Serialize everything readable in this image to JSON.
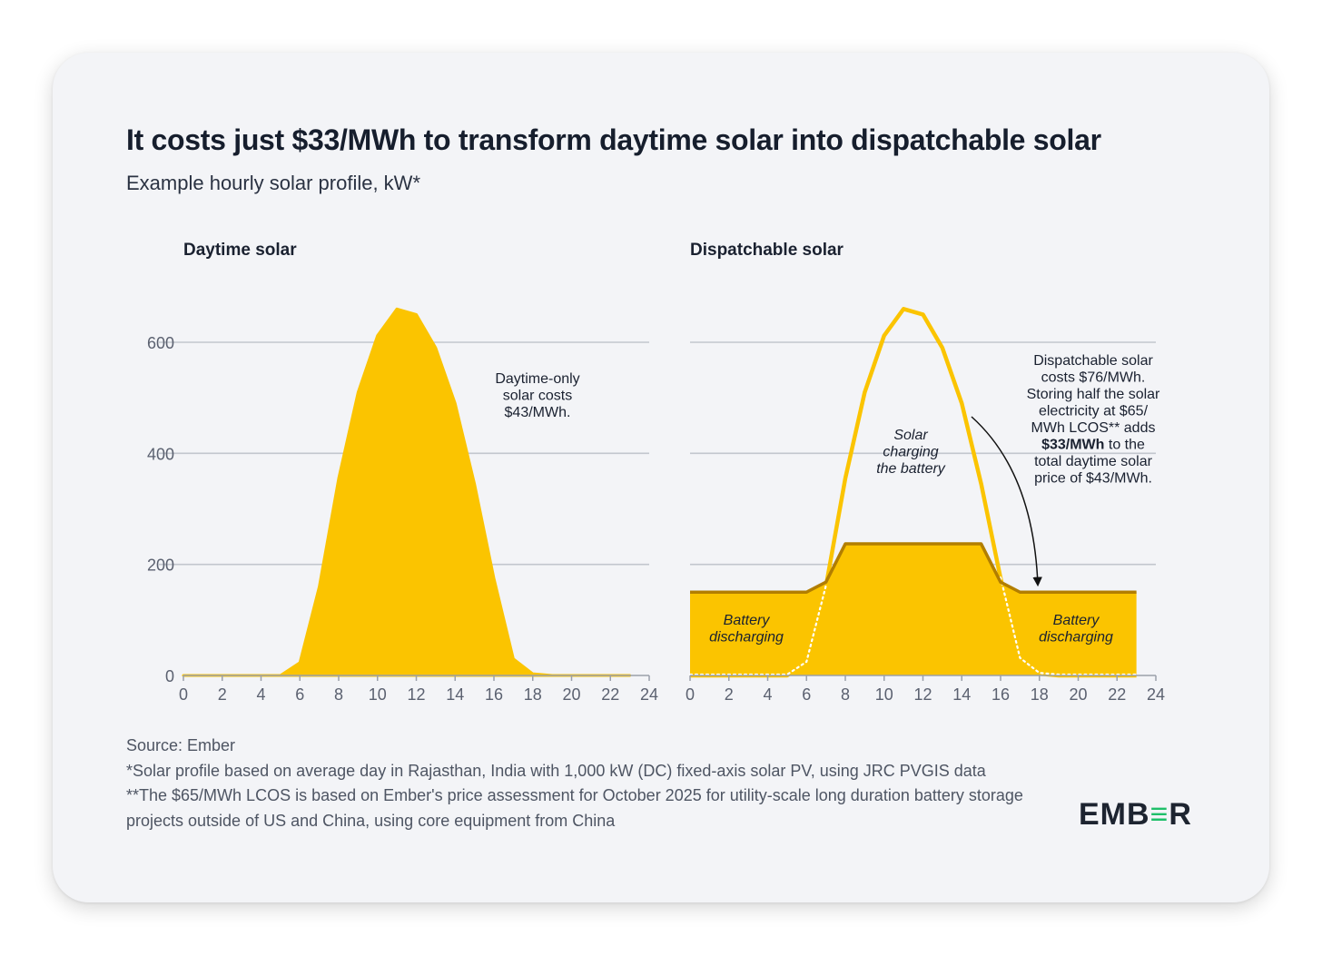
{
  "title": "It costs just $33/MWh to transform daytime solar into dispatchable solar",
  "subtitle": "Example hourly solar profile, kW*",
  "colors": {
    "solar": "#FBC400",
    "solar_line": "#FBC400",
    "battery_line": "#B27E00",
    "grid": "#C2C6CE",
    "axis": "#9BA0AA",
    "text": "#1a2130",
    "tick_text": "#5b6170",
    "background": "#F3F4F7"
  },
  "chart_data": [
    {
      "type": "area",
      "panel_title": "Daytime solar",
      "x": [
        0,
        1,
        2,
        3,
        4,
        5,
        6,
        7,
        8,
        9,
        10,
        11,
        12,
        13,
        14,
        15,
        16,
        17,
        18,
        19,
        20,
        21,
        22,
        23
      ],
      "y": [
        0,
        0,
        0,
        0,
        0,
        0,
        23,
        160,
        355,
        510,
        612,
        660,
        650,
        590,
        490,
        345,
        175,
        30,
        3,
        0,
        0,
        0,
        0,
        0
      ],
      "xlim": [
        0,
        24
      ],
      "ylim": [
        0,
        700
      ],
      "xticks": [
        "0",
        "2",
        "4",
        "6",
        "8",
        "10",
        "12",
        "14",
        "16",
        "18",
        "20",
        "22",
        "24"
      ],
      "yticks": [
        "0",
        "200",
        "400",
        "600"
      ],
      "annotation": [
        "Daytime-only",
        "solar costs",
        "$43/MWh."
      ]
    },
    {
      "type": "area",
      "panel_title": "Dispatchable solar",
      "x": [
        0,
        1,
        2,
        3,
        4,
        5,
        6,
        7,
        8,
        9,
        10,
        11,
        12,
        13,
        14,
        15,
        16,
        17,
        18,
        19,
        20,
        21,
        22,
        23
      ],
      "series": [
        {
          "name": "Dispatchable output",
          "values": [
            150,
            150,
            150,
            150,
            150,
            150,
            150,
            168,
            237,
            237,
            237,
            237,
            237,
            237,
            237,
            237,
            168,
            150,
            150,
            150,
            150,
            150,
            150,
            150
          ]
        },
        {
          "name": "Solar charging the battery",
          "values": [
            0,
            0,
            0,
            0,
            0,
            0,
            23,
            160,
            355,
            510,
            612,
            660,
            650,
            590,
            490,
            345,
            175,
            30,
            3,
            0,
            0,
            0,
            0,
            0
          ]
        }
      ],
      "xlim": [
        0,
        24
      ],
      "ylim": [
        0,
        700
      ],
      "xticks": [
        "0",
        "2",
        "4",
        "6",
        "8",
        "10",
        "12",
        "14",
        "16",
        "18",
        "20",
        "22",
        "24"
      ],
      "labels": {
        "solar_charging": [
          "Solar",
          "charging",
          "the battery"
        ],
        "battery_left": [
          "Battery",
          "discharging"
        ],
        "battery_right": [
          "Battery",
          "discharging"
        ]
      },
      "annotation": [
        {
          "text": "Dispatchable solar",
          "bold": ""
        },
        {
          "text": "costs $76/MWh.",
          "bold": ""
        },
        {
          "text": "Storing half the solar",
          "bold": ""
        },
        {
          "text": "electricity at $65/",
          "bold": ""
        },
        {
          "text": "MWh LCOS** adds",
          "bold": ""
        },
        {
          "text": " to the",
          "bold": "$33/MWh"
        },
        {
          "text": "total daytime solar",
          "bold": ""
        },
        {
          "text": "price of $43/MWh.",
          "bold": ""
        }
      ]
    }
  ],
  "footnotes": {
    "source": "Source: Ember",
    "note1": "*Solar profile based on average day in Rajasthan, India with 1,000 kW (DC) fixed-axis solar PV, using JRC PVGIS data",
    "note2": "**The $65/MWh LCOS is based on Ember's price assessment for October 2025 for utility-scale long duration battery storage projects outside of US and China, using core equipment from China"
  },
  "logo": {
    "part1": "EMB",
    "part2": "≡",
    "part3": "R"
  }
}
